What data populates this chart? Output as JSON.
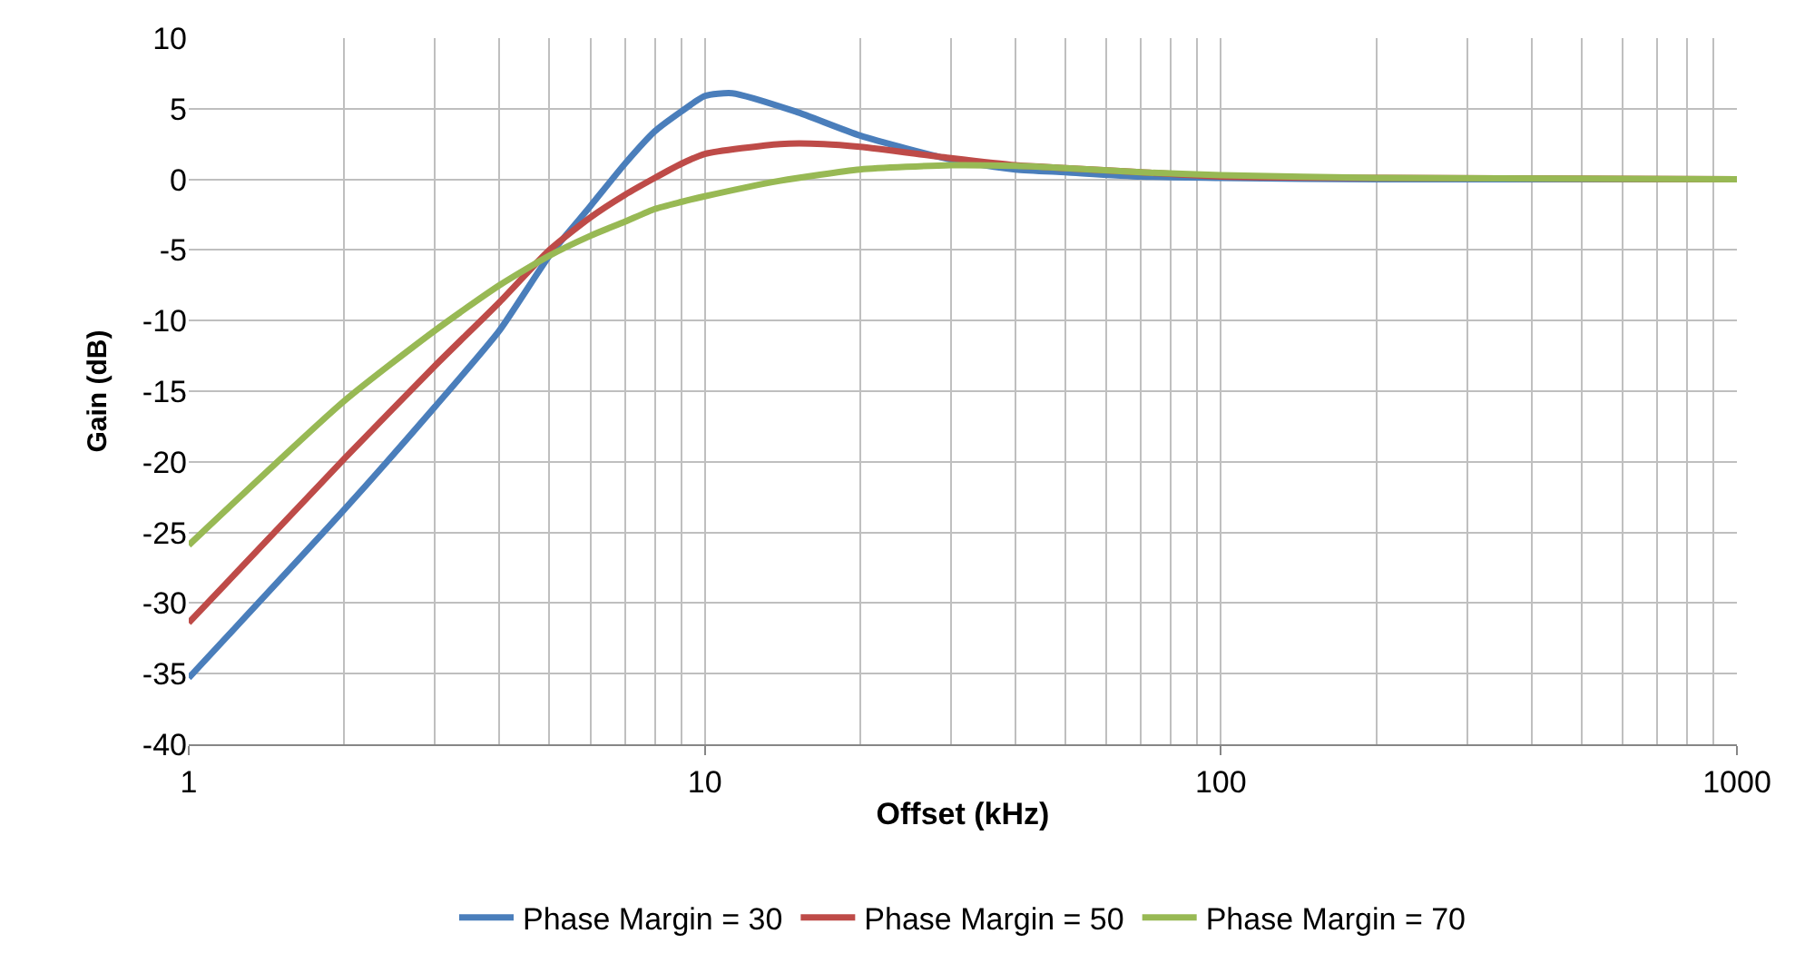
{
  "chart_data": {
    "type": "line",
    "xlabel": "Offset (kHz)",
    "ylabel": "Gain (dB)",
    "log": "x",
    "grid": true,
    "legend": "bottom",
    "marker": "none",
    "line_style": "solid",
    "xlim": [
      1,
      1000
    ],
    "xticks": [
      1,
      10,
      100,
      1000
    ],
    "ylim": [
      -40,
      10
    ],
    "yticks": [
      -40,
      -35,
      -30,
      -25,
      -20,
      -15,
      -10,
      -5,
      0,
      5,
      10
    ],
    "series": [
      {
        "name": "Phase Margin = 30",
        "color": "#4a7ebb",
        "x": [
          1,
          2,
          3,
          4,
          5,
          6,
          7,
          8,
          9,
          10,
          11.3,
          15,
          20,
          30,
          40,
          50,
          70,
          100,
          200,
          1000
        ],
        "values": [
          -35.3,
          -23.4,
          -16.1,
          -10.7,
          -5.4,
          -1.9,
          1.1,
          3.4,
          4.8,
          5.9,
          6.1,
          4.8,
          3.1,
          1.4,
          0.7,
          0.5,
          0.2,
          0.1,
          0,
          0
        ]
      },
      {
        "name": "Phase Margin = 50",
        "color": "#be4b48",
        "x": [
          1,
          2,
          3,
          4,
          5,
          6,
          7,
          8,
          9,
          10,
          14,
          17,
          20,
          30,
          40,
          50,
          70,
          100,
          200,
          1000
        ],
        "values": [
          -31.4,
          -19.8,
          -13.2,
          -8.7,
          -5.0,
          -2.7,
          -1.1,
          0.1,
          1.1,
          1.8,
          2.5,
          2.5,
          2.3,
          1.5,
          1.0,
          0.8,
          0.5,
          0.2,
          0.1,
          0
        ]
      },
      {
        "name": "Phase Margin = 70",
        "color": "#98b954",
        "x": [
          1,
          2,
          3,
          4,
          5,
          6,
          7,
          8,
          9,
          10,
          14,
          20,
          30,
          40,
          50,
          70,
          100,
          200,
          1000
        ],
        "values": [
          -25.9,
          -15.7,
          -10.7,
          -7.5,
          -5.4,
          -4.0,
          -3.0,
          -2.1,
          -1.6,
          -1.2,
          -0.1,
          0.7,
          1.0,
          0.95,
          0.8,
          0.5,
          0.3,
          0.1,
          0
        ]
      }
    ]
  }
}
